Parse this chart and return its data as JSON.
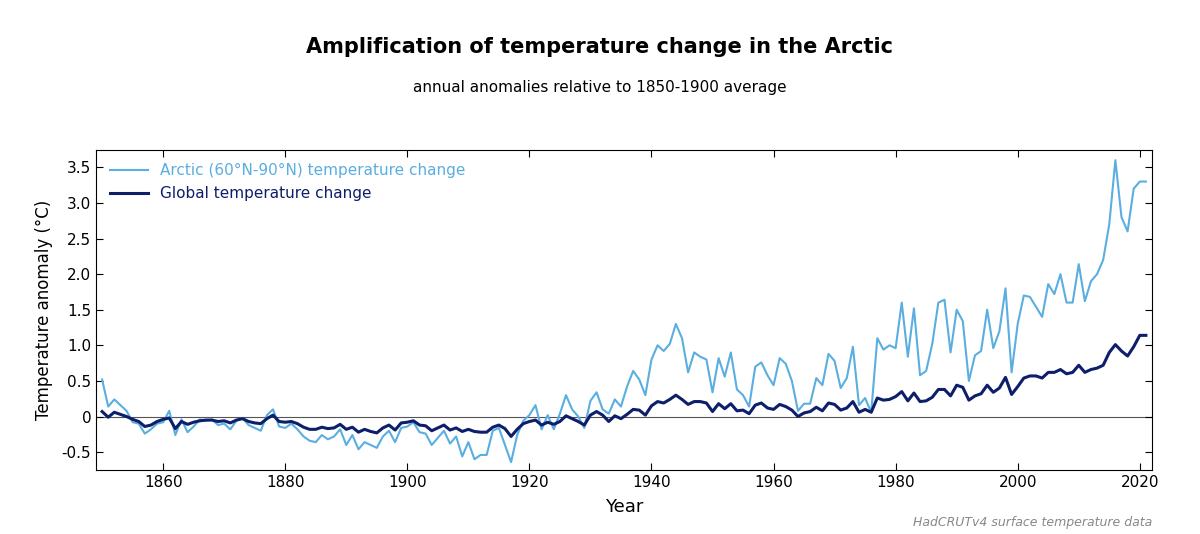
{
  "title": "Amplification of temperature change in the Arctic",
  "subtitle": "annual anomalies relative to 1850-1900 average",
  "xlabel": "Year",
  "ylabel": "Temperature anomaly (°C)",
  "legend_arctic": "Arctic (60°N-90°N) temperature change",
  "legend_global": "Global temperature change",
  "watermark": "HadCRUTv4 surface temperature data",
  "arctic_color": "#5aaee0",
  "global_color": "#0d1f6b",
  "arctic_linewidth": 1.5,
  "global_linewidth": 2.2,
  "ylim": [
    -0.75,
    3.75
  ],
  "xlim": [
    1849,
    2022
  ],
  "yticks": [
    -0.5,
    0.0,
    0.5,
    1.0,
    1.5,
    2.0,
    2.5,
    3.0,
    3.5
  ],
  "xticks": [
    1860,
    1880,
    1900,
    1920,
    1940,
    1960,
    1980,
    2000,
    2020
  ],
  "years": [
    1850,
    1851,
    1852,
    1853,
    1854,
    1855,
    1856,
    1857,
    1858,
    1859,
    1860,
    1861,
    1862,
    1863,
    1864,
    1865,
    1866,
    1867,
    1868,
    1869,
    1870,
    1871,
    1872,
    1873,
    1874,
    1875,
    1876,
    1877,
    1878,
    1879,
    1880,
    1881,
    1882,
    1883,
    1884,
    1885,
    1886,
    1887,
    1888,
    1889,
    1890,
    1891,
    1892,
    1893,
    1894,
    1895,
    1896,
    1897,
    1898,
    1899,
    1900,
    1901,
    1902,
    1903,
    1904,
    1905,
    1906,
    1907,
    1908,
    1909,
    1910,
    1911,
    1912,
    1913,
    1914,
    1915,
    1916,
    1917,
    1918,
    1919,
    1920,
    1921,
    1922,
    1923,
    1924,
    1925,
    1926,
    1927,
    1928,
    1929,
    1930,
    1931,
    1932,
    1933,
    1934,
    1935,
    1936,
    1937,
    1938,
    1939,
    1940,
    1941,
    1942,
    1943,
    1944,
    1945,
    1946,
    1947,
    1948,
    1949,
    1950,
    1951,
    1952,
    1953,
    1954,
    1955,
    1956,
    1957,
    1958,
    1959,
    1960,
    1961,
    1962,
    1963,
    1964,
    1965,
    1966,
    1967,
    1968,
    1969,
    1970,
    1971,
    1972,
    1973,
    1974,
    1975,
    1976,
    1977,
    1978,
    1979,
    1980,
    1981,
    1982,
    1983,
    1984,
    1985,
    1986,
    1987,
    1988,
    1989,
    1990,
    1991,
    1992,
    1993,
    1994,
    1995,
    1996,
    1997,
    1998,
    1999,
    2000,
    2001,
    2002,
    2003,
    2004,
    2005,
    2006,
    2007,
    2008,
    2009,
    2010,
    2011,
    2012,
    2013,
    2014,
    2015,
    2016,
    2017,
    2018,
    2019,
    2020,
    2021
  ],
  "global": [
    0.07,
    -0.01,
    0.06,
    0.03,
    0.0,
    -0.04,
    -0.07,
    -0.14,
    -0.12,
    -0.07,
    -0.04,
    -0.02,
    -0.17,
    -0.07,
    -0.11,
    -0.08,
    -0.06,
    -0.05,
    -0.05,
    -0.07,
    -0.06,
    -0.09,
    -0.05,
    -0.03,
    -0.07,
    -0.09,
    -0.1,
    -0.03,
    0.02,
    -0.07,
    -0.08,
    -0.07,
    -0.1,
    -0.15,
    -0.18,
    -0.18,
    -0.15,
    -0.17,
    -0.16,
    -0.11,
    -0.18,
    -0.15,
    -0.22,
    -0.18,
    -0.21,
    -0.23,
    -0.16,
    -0.12,
    -0.19,
    -0.09,
    -0.08,
    -0.06,
    -0.12,
    -0.13,
    -0.2,
    -0.16,
    -0.12,
    -0.19,
    -0.16,
    -0.21,
    -0.18,
    -0.21,
    -0.22,
    -0.22,
    -0.15,
    -0.12,
    -0.17,
    -0.28,
    -0.18,
    -0.1,
    -0.07,
    -0.05,
    -0.12,
    -0.08,
    -0.11,
    -0.07,
    0.01,
    -0.03,
    -0.07,
    -0.12,
    0.02,
    0.07,
    0.02,
    -0.07,
    0.01,
    -0.03,
    0.03,
    0.1,
    0.09,
    0.02,
    0.15,
    0.21,
    0.19,
    0.24,
    0.3,
    0.24,
    0.17,
    0.21,
    0.21,
    0.19,
    0.07,
    0.18,
    0.11,
    0.18,
    0.08,
    0.09,
    0.04,
    0.16,
    0.19,
    0.12,
    0.1,
    0.17,
    0.14,
    0.09,
    0.0,
    0.05,
    0.07,
    0.13,
    0.08,
    0.19,
    0.17,
    0.09,
    0.12,
    0.21,
    0.06,
    0.1,
    0.06,
    0.26,
    0.23,
    0.24,
    0.28,
    0.35,
    0.22,
    0.33,
    0.21,
    0.22,
    0.27,
    0.38,
    0.38,
    0.29,
    0.44,
    0.41,
    0.23,
    0.29,
    0.32,
    0.44,
    0.34,
    0.4,
    0.55,
    0.31,
    0.42,
    0.54,
    0.57,
    0.57,
    0.54,
    0.62,
    0.62,
    0.66,
    0.6,
    0.62,
    0.72,
    0.62,
    0.66,
    0.68,
    0.72,
    0.9,
    1.01,
    0.92,
    0.85,
    0.98,
    1.14,
    1.14
  ],
  "arctic": [
    0.52,
    0.14,
    0.24,
    0.16,
    0.08,
    -0.08,
    -0.1,
    -0.24,
    -0.18,
    -0.1,
    -0.08,
    0.08,
    -0.26,
    -0.04,
    -0.22,
    -0.14,
    -0.04,
    -0.06,
    -0.04,
    -0.12,
    -0.1,
    -0.18,
    -0.06,
    -0.02,
    -0.12,
    -0.16,
    -0.2,
    0.02,
    0.1,
    -0.14,
    -0.16,
    -0.1,
    -0.18,
    -0.28,
    -0.34,
    -0.36,
    -0.26,
    -0.32,
    -0.28,
    -0.18,
    -0.4,
    -0.26,
    -0.46,
    -0.36,
    -0.4,
    -0.44,
    -0.28,
    -0.2,
    -0.36,
    -0.16,
    -0.14,
    -0.08,
    -0.22,
    -0.24,
    -0.4,
    -0.3,
    -0.2,
    -0.38,
    -0.28,
    -0.56,
    -0.36,
    -0.6,
    -0.54,
    -0.54,
    -0.2,
    -0.16,
    -0.4,
    -0.64,
    -0.26,
    -0.06,
    0.02,
    0.16,
    -0.18,
    0.02,
    -0.18,
    0.04,
    0.3,
    0.1,
    0.0,
    -0.16,
    0.22,
    0.34,
    0.1,
    0.04,
    0.24,
    0.14,
    0.42,
    0.64,
    0.52,
    0.3,
    0.8,
    1.0,
    0.92,
    1.02,
    1.3,
    1.1,
    0.62,
    0.9,
    0.84,
    0.8,
    0.34,
    0.82,
    0.56,
    0.9,
    0.38,
    0.3,
    0.14,
    0.7,
    0.76,
    0.58,
    0.44,
    0.82,
    0.74,
    0.5,
    0.08,
    0.18,
    0.18,
    0.54,
    0.44,
    0.88,
    0.78,
    0.4,
    0.54,
    0.98,
    0.16,
    0.26,
    0.06,
    1.1,
    0.94,
    1.0,
    0.96,
    1.6,
    0.84,
    1.52,
    0.58,
    0.64,
    1.02,
    1.6,
    1.64,
    0.9,
    1.5,
    1.34,
    0.5,
    0.86,
    0.92,
    1.5,
    0.96,
    1.2,
    1.8,
    0.62,
    1.3,
    1.7,
    1.68,
    1.54,
    1.4,
    1.86,
    1.72,
    2.0,
    1.6,
    1.6,
    2.14,
    1.62,
    1.9,
    2.0,
    2.2,
    2.7,
    3.6,
    2.8,
    2.6,
    3.2,
    3.3,
    3.3
  ]
}
